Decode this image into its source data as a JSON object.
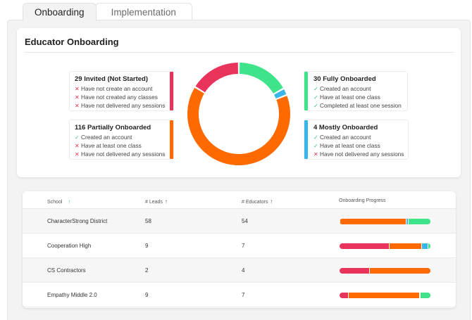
{
  "tabs": [
    {
      "label": "Onboarding",
      "active": true
    },
    {
      "label": "Implementation",
      "active": false
    }
  ],
  "card": {
    "title": "Educator Onboarding"
  },
  "statuses": {
    "invited": {
      "title": "29 Invited (Not Started)",
      "color": "#e8345a",
      "lines": [
        {
          "mark": "✕",
          "ok": false,
          "text": "Have not create an account"
        },
        {
          "mark": "✕",
          "ok": false,
          "text": "Have not created any classes"
        },
        {
          "mark": "✕",
          "ok": false,
          "text": "Have not delivered any sessions"
        }
      ]
    },
    "partial": {
      "title": "116 Partially Onboarded",
      "color": "#ff6a00",
      "lines": [
        {
          "mark": "✓",
          "ok": true,
          "text": "Created an account"
        },
        {
          "mark": "✕",
          "ok": false,
          "text": "Have at least one class"
        },
        {
          "mark": "✕",
          "ok": false,
          "text": "Have not delivered any sessions"
        }
      ]
    },
    "fully": {
      "title": "30 Fully Onboarded",
      "color": "#3ee38a",
      "lines": [
        {
          "mark": "✓",
          "ok": true,
          "text": "Created an account"
        },
        {
          "mark": "✓",
          "ok": true,
          "text": "Have at least one class"
        },
        {
          "mark": "✓",
          "ok": true,
          "text": "Completed at least one session"
        }
      ]
    },
    "mostly": {
      "title": "4 Mostly Onboarded",
      "color": "#38b6e8",
      "lines": [
        {
          "mark": "✓",
          "ok": true,
          "text": "Created an account"
        },
        {
          "mark": "✓",
          "ok": true,
          "text": "Have at least one class"
        },
        {
          "mark": "✕",
          "ok": false,
          "text": "Have not delivered any sessions"
        }
      ]
    }
  },
  "donut": {
    "segments": [
      {
        "name": "Fully Onboarded",
        "value": 30,
        "color": "#3ee38a"
      },
      {
        "name": "Mostly Onboarded",
        "value": 4,
        "color": "#38b6e8"
      },
      {
        "name": "Partially Onboarded",
        "value": 116,
        "color": "#ff6a00"
      },
      {
        "name": "Invited (Not Started)",
        "value": 29,
        "color": "#e8345a"
      }
    ]
  },
  "table": {
    "headers": {
      "school": "School",
      "leads": "# Leads",
      "educators": "# Educators",
      "progress": "Onboarding Progress"
    },
    "rows": [
      {
        "school": "CharacterStrong District",
        "leads": "58",
        "educators": "54",
        "progress": {
          "invited": 1,
          "partial": 73,
          "mostly": 2,
          "fully": 24
        }
      },
      {
        "school": "Cooperation High",
        "leads": "9",
        "educators": "7",
        "progress": {
          "invited": 55,
          "partial": 36,
          "mostly": 7,
          "fully": 2
        }
      },
      {
        "school": "CS Contractors",
        "leads": "2",
        "educators": "4",
        "progress": {
          "invited": 33,
          "partial": 67,
          "mostly": 0,
          "fully": 0
        }
      },
      {
        "school": "Empathy Middle 2.0",
        "leads": "9",
        "educators": "7",
        "progress": {
          "invited": 10,
          "partial": 78,
          "mostly": 1,
          "fully": 11
        }
      }
    ]
  }
}
